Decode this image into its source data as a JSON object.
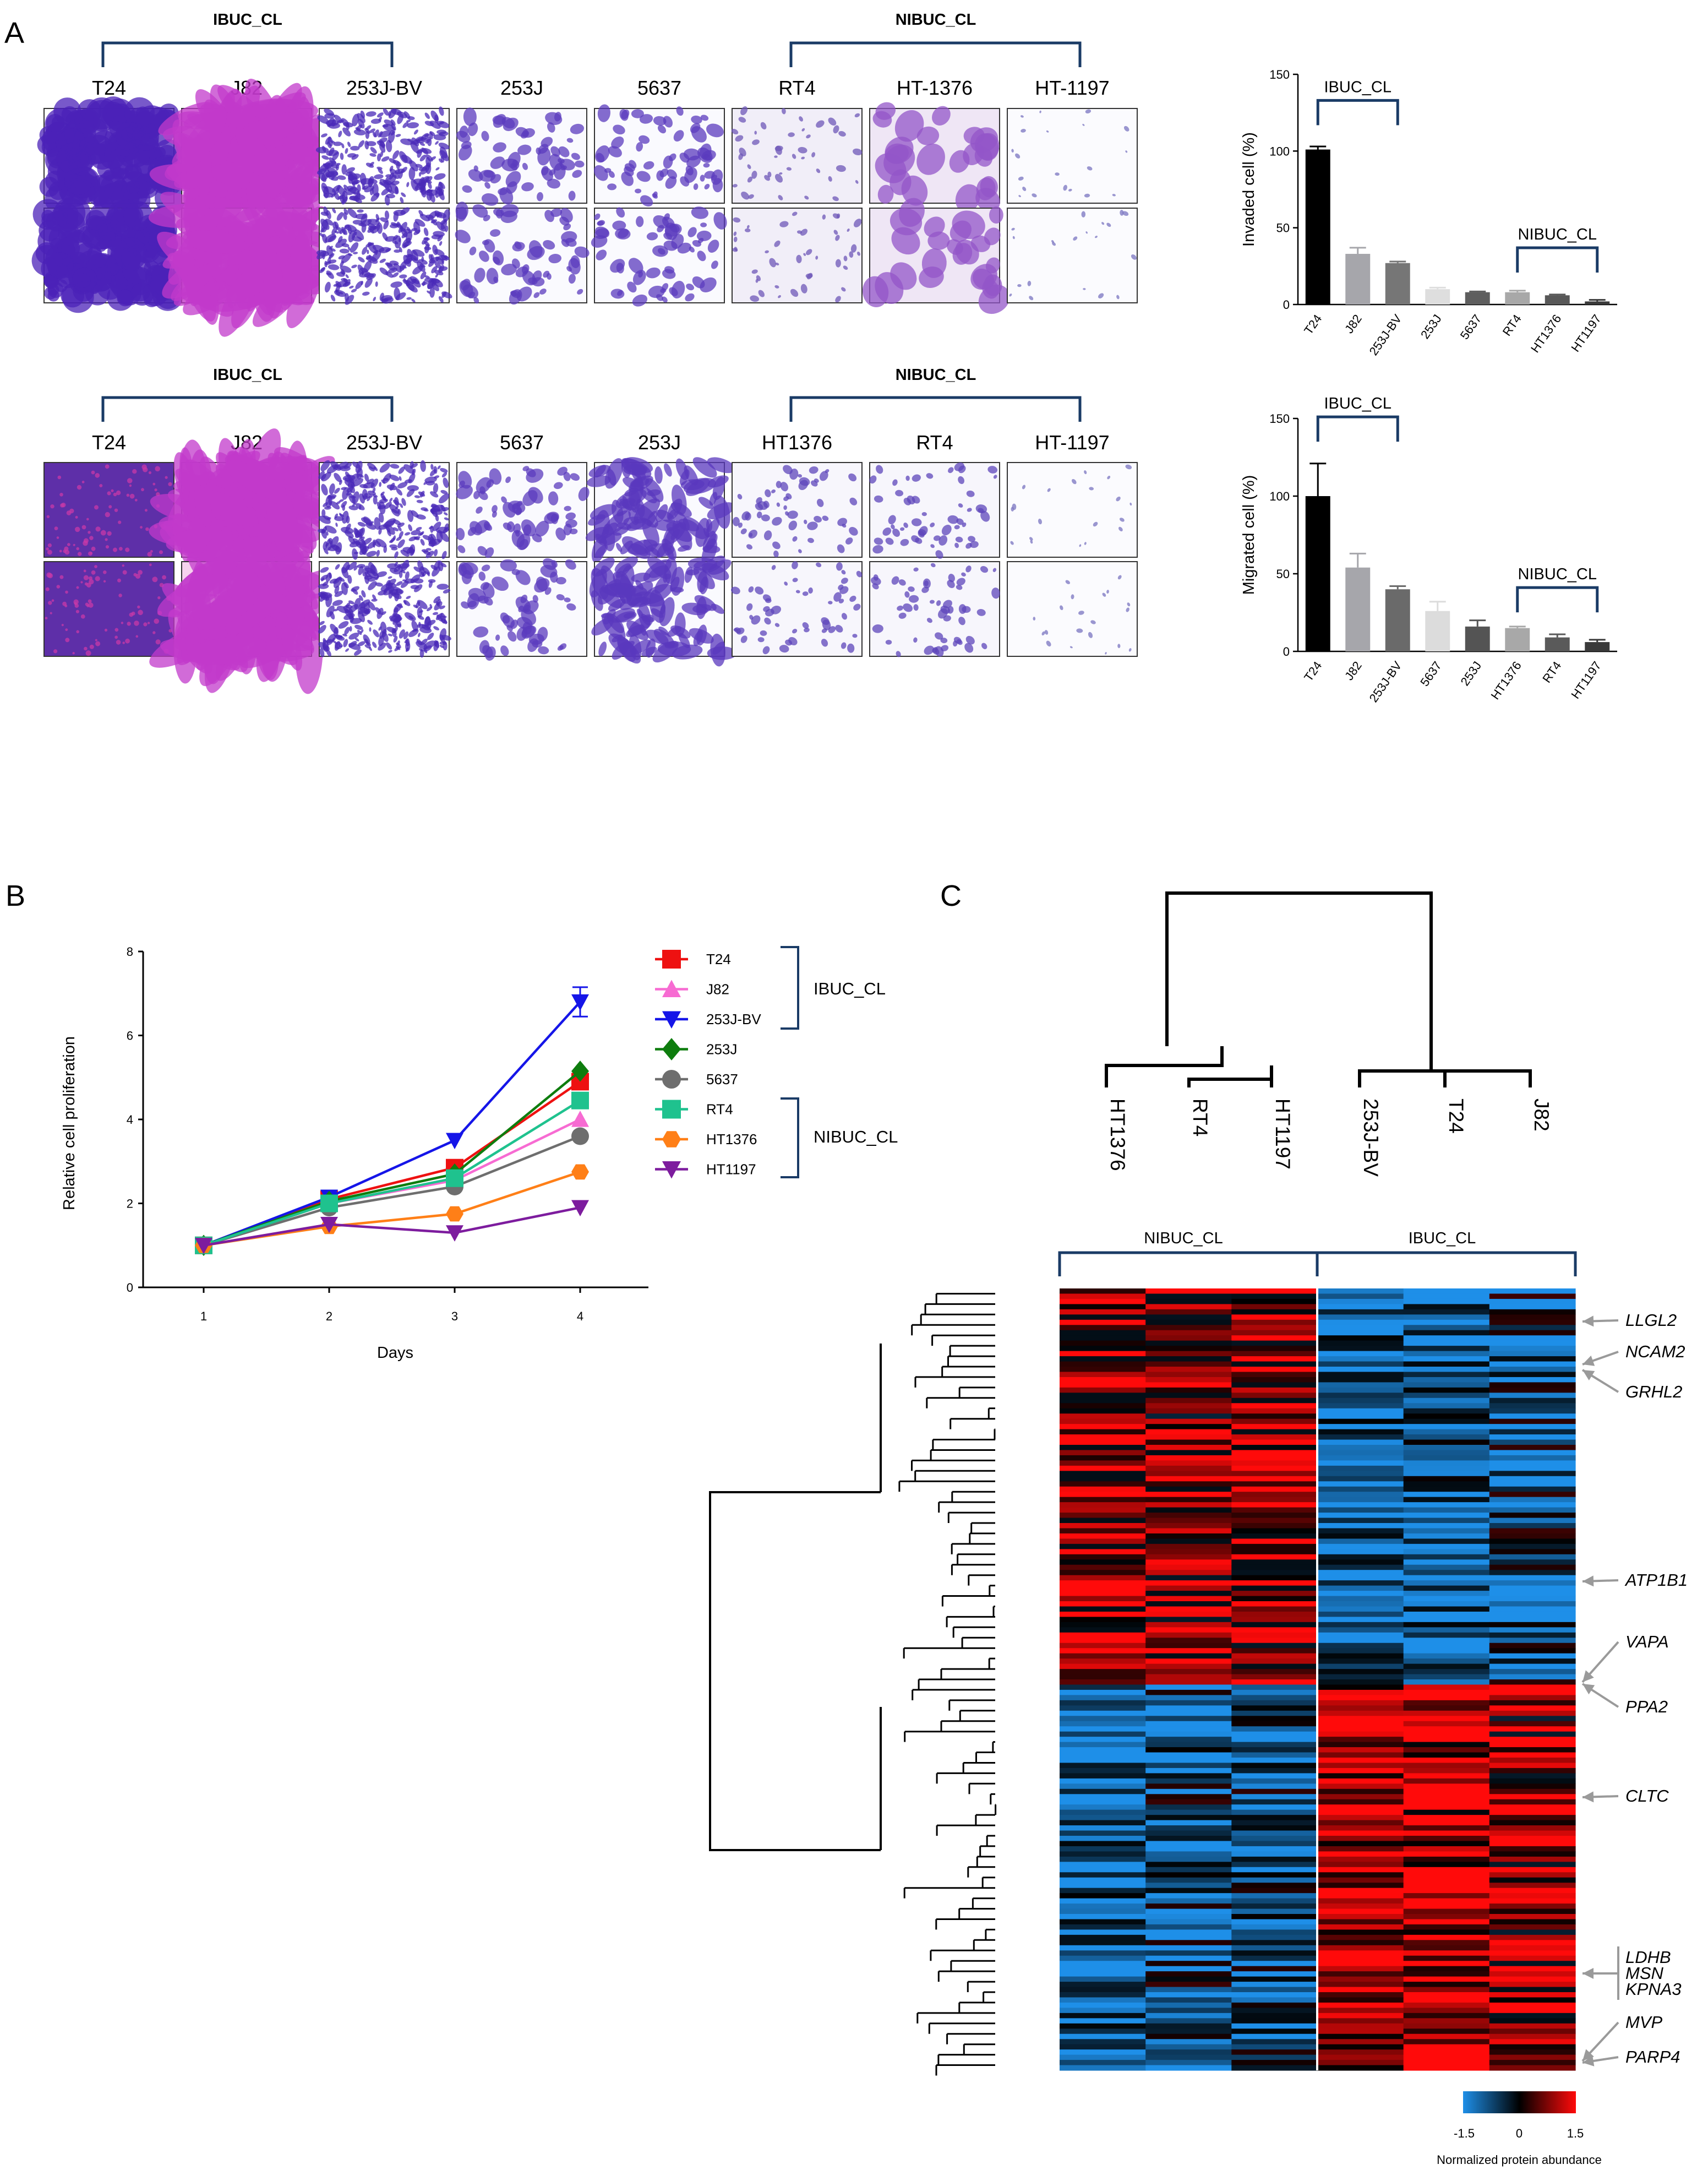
{
  "panels": {
    "a": "A",
    "b": "B",
    "c": "C"
  },
  "groups": {
    "ibuc": "IBUC_CL",
    "nibuc": "NIBUC_CL"
  },
  "invasion_images": {
    "labels": [
      "T24",
      "J82",
      "253J-BV",
      "253J",
      "5637",
      "RT4",
      "HT-1376",
      "HT-1197"
    ],
    "styles": [
      "dense_dark",
      "pink_spindle",
      "fine_dense",
      "clusters",
      "clusters",
      "sparse",
      "large_clumps",
      "very_sparse"
    ]
  },
  "migration_images": {
    "labels": [
      "T24",
      "J82",
      "253J-BV",
      "5637",
      "253J",
      "HT1376",
      "RT4",
      "HT-1197"
    ],
    "styles": [
      "purple_lawn",
      "pink_spindle",
      "fine_dense",
      "clusters",
      "spread",
      "small_clusters",
      "small_clusters",
      "very_sparse"
    ]
  },
  "heatmap": {
    "columns": [
      "HT1376",
      "RT4",
      "HT1197",
      "253J-BV",
      "T24",
      "J82"
    ],
    "genes": [
      "LLGL2",
      "NCAM2",
      "GRHL2",
      "ATP1B1",
      "VAPA",
      "PPA2",
      "CLTC",
      "LDHB",
      "MSN",
      "KPNA3",
      "MVP",
      "PARP4"
    ],
    "colorbar": {
      "min": "-1.5",
      "mid": "0",
      "max": "1.5",
      "label": "Normalized protein abundance",
      "colors": [
        "#1e8fe8",
        "#000000",
        "#ff0a0a"
      ]
    }
  },
  "chart_data": [
    {
      "type": "bar",
      "categories": [
        "T24",
        "J82",
        "253J-BV",
        "253J",
        "5637",
        "RT4",
        "HT1376",
        "HT1197"
      ],
      "values": [
        101,
        33,
        27,
        10,
        8,
        8,
        6,
        2
      ],
      "errors": [
        2,
        4,
        1,
        1,
        0.5,
        1,
        0.5,
        1
      ],
      "colors": [
        "#000000",
        "#a6a6ab",
        "#767676",
        "#dedede",
        "#5e5e5e",
        "#a8a8a8",
        "#585858",
        "#3a3a3a"
      ],
      "ylabel": "Invaded cell (%)",
      "ylim": [
        0,
        150
      ],
      "yticks": [
        "0",
        "50",
        "100",
        "150"
      ],
      "bracket_left": "IBUC_CL",
      "bracket_right": "NIBUC_CL"
    },
    {
      "type": "bar",
      "categories": [
        "T24",
        "J82",
        "253J-BV",
        "5637",
        "253J",
        "HT1376",
        "RT4",
        "HT1197"
      ],
      "values": [
        100,
        54,
        40,
        26,
        16,
        15,
        9,
        6
      ],
      "errors": [
        21,
        9,
        2,
        6,
        4,
        1,
        2,
        1.5
      ],
      "colors": [
        "#000000",
        "#a6a6ab",
        "#6a6a6a",
        "#dcdcdc",
        "#545454",
        "#a8a8a8",
        "#5a5a5a",
        "#3a3a3a"
      ],
      "ylabel": "Migrated cell (%)",
      "ylim": [
        0,
        150
      ],
      "yticks": [
        "0",
        "50",
        "100",
        "150"
      ],
      "bracket_left": "IBUC_CL",
      "bracket_right": "NIBUC_CL"
    },
    {
      "type": "line",
      "x": [
        1,
        2,
        3,
        4
      ],
      "xticks": [
        "1",
        "2",
        "3",
        "4"
      ],
      "ylim": [
        0,
        8
      ],
      "yticks": [
        "0",
        "2",
        "4",
        "6",
        "8"
      ],
      "xlabel": "Days",
      "ylabel": "Relative cell proliferation",
      "series": [
        {
          "name": "T24",
          "values": [
            1,
            2.1,
            2.85,
            4.9
          ],
          "color": "#ee1111",
          "marker": "square"
        },
        {
          "name": "J82",
          "values": [
            1,
            2.0,
            2.55,
            4.0
          ],
          "color": "#f76bd2",
          "marker": "triangle-up"
        },
        {
          "name": "253J-BV",
          "values": [
            1,
            2.15,
            3.5,
            6.8
          ],
          "color": "#1515e8",
          "marker": "triangle-down"
        },
        {
          "name": "253J",
          "values": [
            1,
            2.05,
            2.7,
            5.15
          ],
          "color": "#0e7d0e",
          "marker": "diamond"
        },
        {
          "name": "5637",
          "values": [
            1,
            1.9,
            2.4,
            3.6
          ],
          "color": "#6e6e6e",
          "marker": "circle"
        },
        {
          "name": "RT4",
          "values": [
            1,
            2.0,
            2.6,
            4.45
          ],
          "color": "#1fc28e",
          "marker": "square"
        },
        {
          "name": "HT1376",
          "values": [
            1,
            1.45,
            1.75,
            2.75
          ],
          "color": "#ff7f17",
          "marker": "hexagon"
        },
        {
          "name": "HT1197",
          "values": [
            1,
            1.5,
            1.3,
            1.9
          ],
          "color": "#7d1c9e",
          "marker": "triangle-down"
        }
      ],
      "legend_group_top": "IBUC_CL",
      "legend_group_bottom": "NIBUC_CL"
    }
  ]
}
